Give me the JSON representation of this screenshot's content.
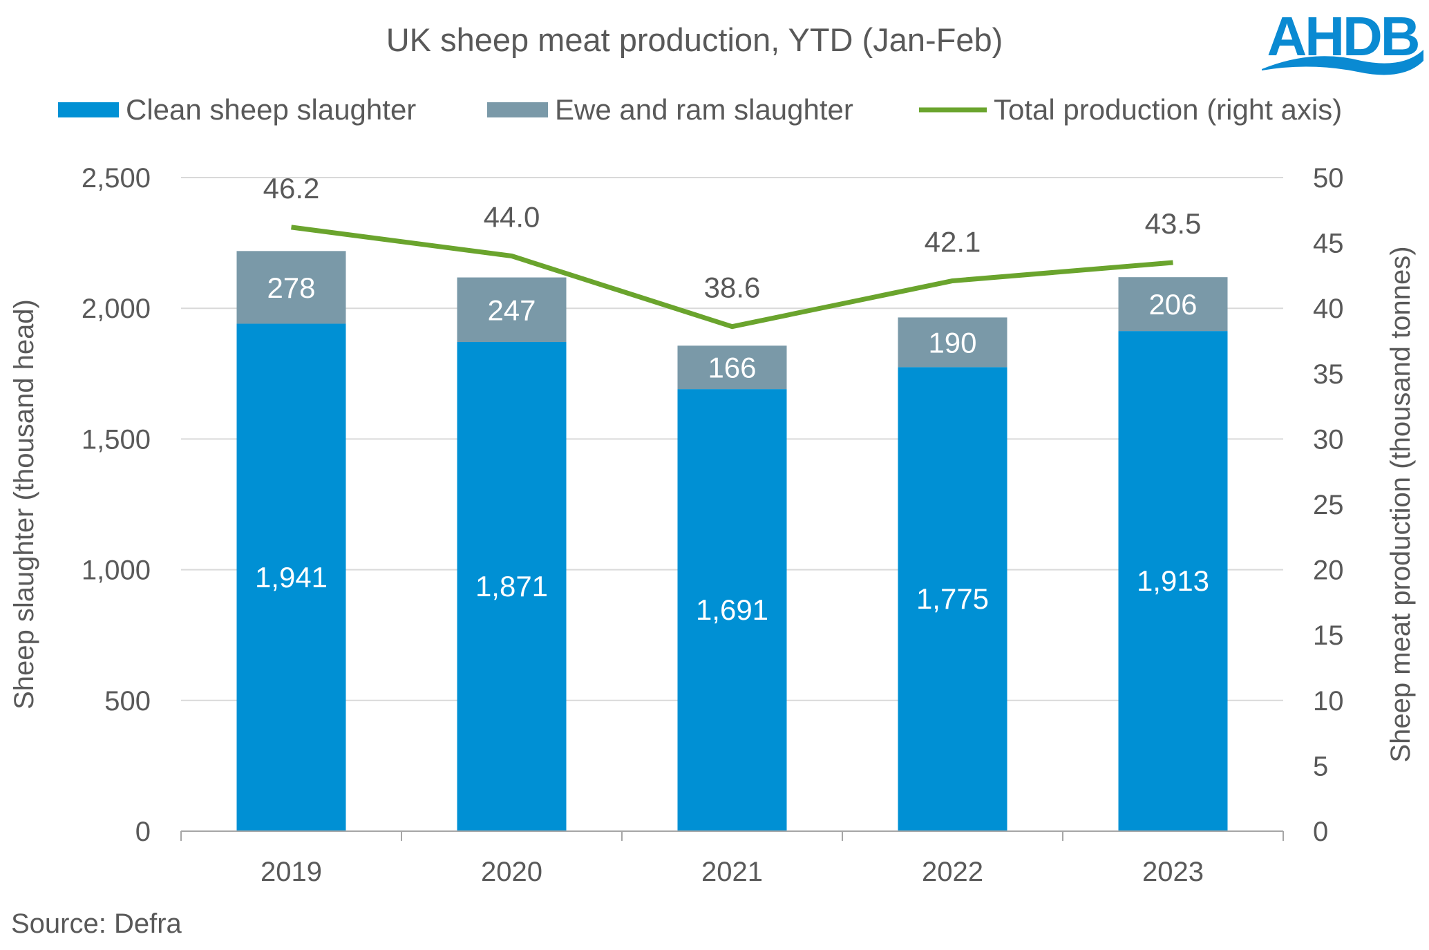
{
  "chart_data": {
    "type": "bar",
    "title": "UK sheep meat production, YTD (Jan-Feb)",
    "categories": [
      "2019",
      "2020",
      "2021",
      "2022",
      "2023"
    ],
    "series": [
      {
        "name": "Clean sheep slaughter",
        "type": "stacked-bar",
        "axis": "left",
        "color": "#0090d4",
        "values": [
          1941,
          1871,
          1691,
          1775,
          1913
        ],
        "labels": [
          "1,941",
          "1,871",
          "1,691",
          "1,775",
          "1,913"
        ]
      },
      {
        "name": "Ewe and ram slaughter",
        "type": "stacked-bar",
        "axis": "left",
        "color": "#7a99a8",
        "values": [
          278,
          247,
          166,
          190,
          206
        ],
        "labels": [
          "278",
          "247",
          "166",
          "190",
          "206"
        ]
      },
      {
        "name": "Total production (right axis)",
        "type": "line",
        "axis": "right",
        "color": "#6aa42d",
        "values": [
          46.2,
          44.0,
          38.6,
          42.1,
          43.5
        ],
        "labels": [
          "46.2",
          "44.0",
          "38.6",
          "42.1",
          "43.5"
        ]
      }
    ],
    "ylabel": "Sheep slaughter (thousand head)",
    "ylim": [
      0,
      2500
    ],
    "yticks": [
      "0",
      "500",
      "1,000",
      "1,500",
      "2,000",
      "2,500"
    ],
    "y2label": "Sheep meat production (thousand tonnes)",
    "y2lim": [
      0,
      50
    ],
    "y2ticks": [
      "0",
      "5",
      "10",
      "15",
      "20",
      "25",
      "30",
      "35",
      "40",
      "45",
      "50"
    ],
    "grid": true,
    "legend": "top"
  },
  "source": "Source: Defra",
  "logo": {
    "text": "AHDB",
    "color": "#0a8ad2"
  }
}
